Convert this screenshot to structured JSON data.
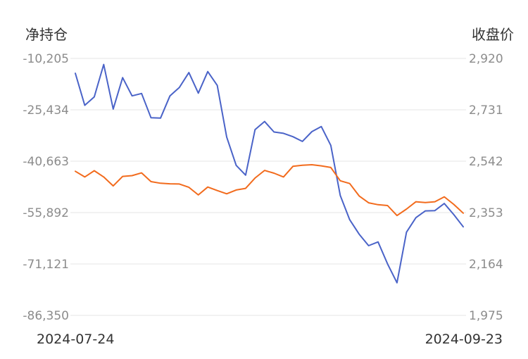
{
  "chart_data": {
    "type": "line",
    "title": "",
    "left_axis": {
      "label": "净持仓",
      "ticks": [
        "-10,205",
        "-25,434",
        "-40,663",
        "-55,892",
        "-71,121",
        "-86,350"
      ],
      "ylim": [
        -86350,
        -10205
      ]
    },
    "right_axis": {
      "label": "收盘价",
      "ticks": [
        "2,920",
        "2,731",
        "2,542",
        "2,353",
        "2,164",
        "1,975"
      ],
      "ylim": [
        1975,
        2920
      ]
    },
    "x_start_label": "2024-07-24",
    "x_end_label": "2024-09-23",
    "grid": true,
    "series": [
      {
        "axis": "left",
        "color": "#4a63c8",
        "values": [
          -14600,
          -24100,
          -21600,
          -12000,
          -25200,
          -15900,
          -21300,
          -20600,
          -27800,
          -27900,
          -21300,
          -18800,
          -14400,
          -20500,
          -14100,
          -18200,
          -33500,
          -41900,
          -44800,
          -31300,
          -28900,
          -32000,
          -32400,
          -33400,
          -34800,
          -31900,
          -30400,
          -36000,
          -50800,
          -58000,
          -62300,
          -65700,
          -64600,
          -71100,
          -76700,
          -61700,
          -57400,
          -55400,
          -55300,
          -53200,
          -56500,
          -60100
        ]
      },
      {
        "axis": "right",
        "color": "#f26b1d",
        "values": [
          2505,
          2484,
          2507,
          2484,
          2451,
          2486,
          2489,
          2499,
          2467,
          2461,
          2459,
          2458,
          2446,
          2418,
          2447,
          2434,
          2422,
          2436,
          2442,
          2480,
          2508,
          2498,
          2484,
          2523,
          2527,
          2529,
          2525,
          2519,
          2470,
          2460,
          2414,
          2389,
          2382,
          2379,
          2342,
          2366,
          2393,
          2390,
          2393,
          2411,
          2383,
          2351
        ]
      }
    ]
  }
}
